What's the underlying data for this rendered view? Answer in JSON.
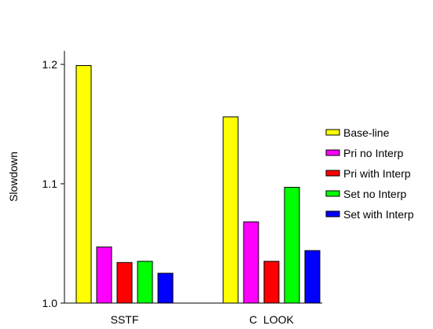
{
  "chart_data": {
    "type": "bar",
    "title": "",
    "xlabel": "",
    "ylabel": "Slowdown",
    "ylim": [
      1.0,
      1.21
    ],
    "yticks": [
      {
        "value": 1.0,
        "label": "1.0"
      },
      {
        "value": 1.1,
        "label": "1.1"
      },
      {
        "value": 1.2,
        "label": "1.2"
      }
    ],
    "grid": false,
    "legend_position": "right",
    "categories": [
      "SSTF",
      "C  LOOK"
    ],
    "series": [
      {
        "name": "Base-line",
        "color": "#ffff00",
        "values": [
          1.199,
          1.156
        ]
      },
      {
        "name": "Pri no Interp",
        "color": "#ff00ff",
        "values": [
          1.047,
          1.068
        ]
      },
      {
        "name": "Pri with Interp",
        "color": "#ff0000",
        "values": [
          1.034,
          1.035
        ]
      },
      {
        "name": "Set no Interp",
        "color": "#00ff00",
        "values": [
          1.035,
          1.097
        ]
      },
      {
        "name": "Set with Interp",
        "color": "#0000ff",
        "values": [
          1.025,
          1.044
        ]
      }
    ]
  }
}
